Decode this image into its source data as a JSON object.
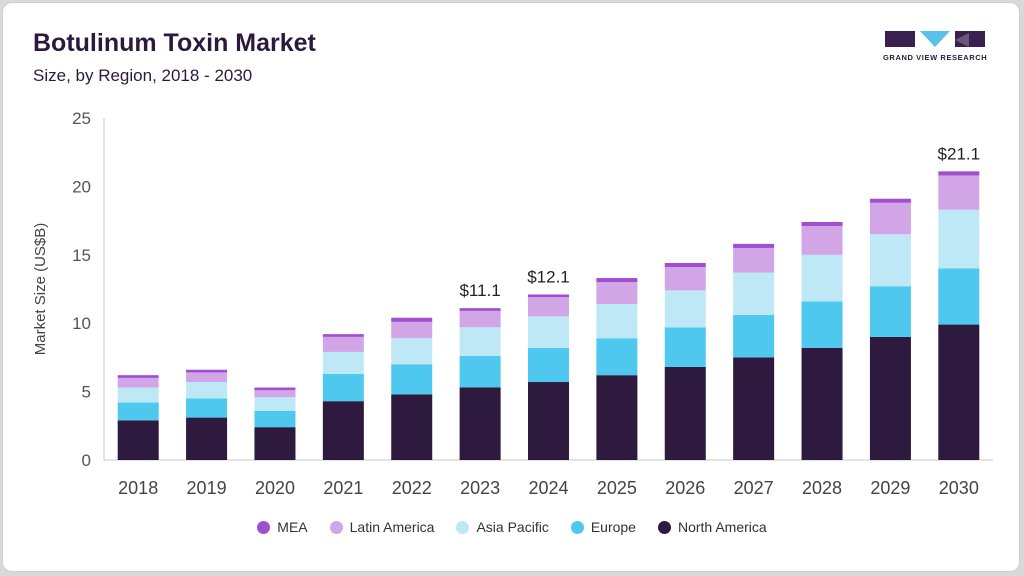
{
  "header": {
    "title": "Botulinum Toxin Market",
    "subtitle": "Size, by Region, 2018 - 2030"
  },
  "logo": {
    "icon": "grand-view-research-logo",
    "text": "GRAND VIEW RESEARCH",
    "color": "#3b1f4f",
    "accent": "#5bc0eb"
  },
  "chart_data": {
    "type": "bar",
    "stacked": true,
    "title": "Botulinum Toxin Market",
    "subtitle": "Size, by Region, 2018 - 2030",
    "xlabel": "",
    "ylabel": "Market Size (US$B)",
    "ylim": [
      0,
      25
    ],
    "yticks": [
      0,
      5,
      10,
      15,
      20,
      25
    ],
    "grid": false,
    "legend_position": "bottom",
    "categories": [
      "2018",
      "2019",
      "2020",
      "2021",
      "2022",
      "2023",
      "2024",
      "2025",
      "2026",
      "2027",
      "2028",
      "2029",
      "2030"
    ],
    "series": [
      {
        "name": "North America",
        "color": "#2d1a3e",
        "values": [
          2.9,
          3.1,
          2.4,
          4.3,
          4.8,
          5.3,
          5.7,
          6.2,
          6.8,
          7.5,
          8.2,
          9.0,
          9.9
        ]
      },
      {
        "name": "Europe",
        "color": "#4fc8f0",
        "values": [
          1.3,
          1.4,
          1.2,
          2.0,
          2.2,
          2.3,
          2.5,
          2.7,
          2.9,
          3.1,
          3.4,
          3.7,
          4.1
        ]
      },
      {
        "name": "Asia Pacific",
        "color": "#bfe8f7",
        "values": [
          1.1,
          1.2,
          1.0,
          1.6,
          1.9,
          2.1,
          2.3,
          2.5,
          2.7,
          3.1,
          3.4,
          3.8,
          4.3
        ]
      },
      {
        "name": "Latin America",
        "color": "#d2a6e6",
        "values": [
          0.7,
          0.7,
          0.5,
          1.1,
          1.2,
          1.2,
          1.4,
          1.6,
          1.7,
          1.8,
          2.1,
          2.3,
          2.5
        ]
      },
      {
        "name": "MEA",
        "color": "#a04fd0",
        "values": [
          0.2,
          0.2,
          0.2,
          0.2,
          0.3,
          0.2,
          0.2,
          0.3,
          0.3,
          0.3,
          0.3,
          0.3,
          0.3
        ]
      }
    ],
    "annotations": [
      {
        "category": "2023",
        "label": "$11.1"
      },
      {
        "category": "2024",
        "label": "$12.1"
      },
      {
        "category": "2030",
        "label": "$21.1"
      }
    ],
    "legend_order": [
      "MEA",
      "Latin America",
      "Asia Pacific",
      "Europe",
      "North America"
    ]
  }
}
